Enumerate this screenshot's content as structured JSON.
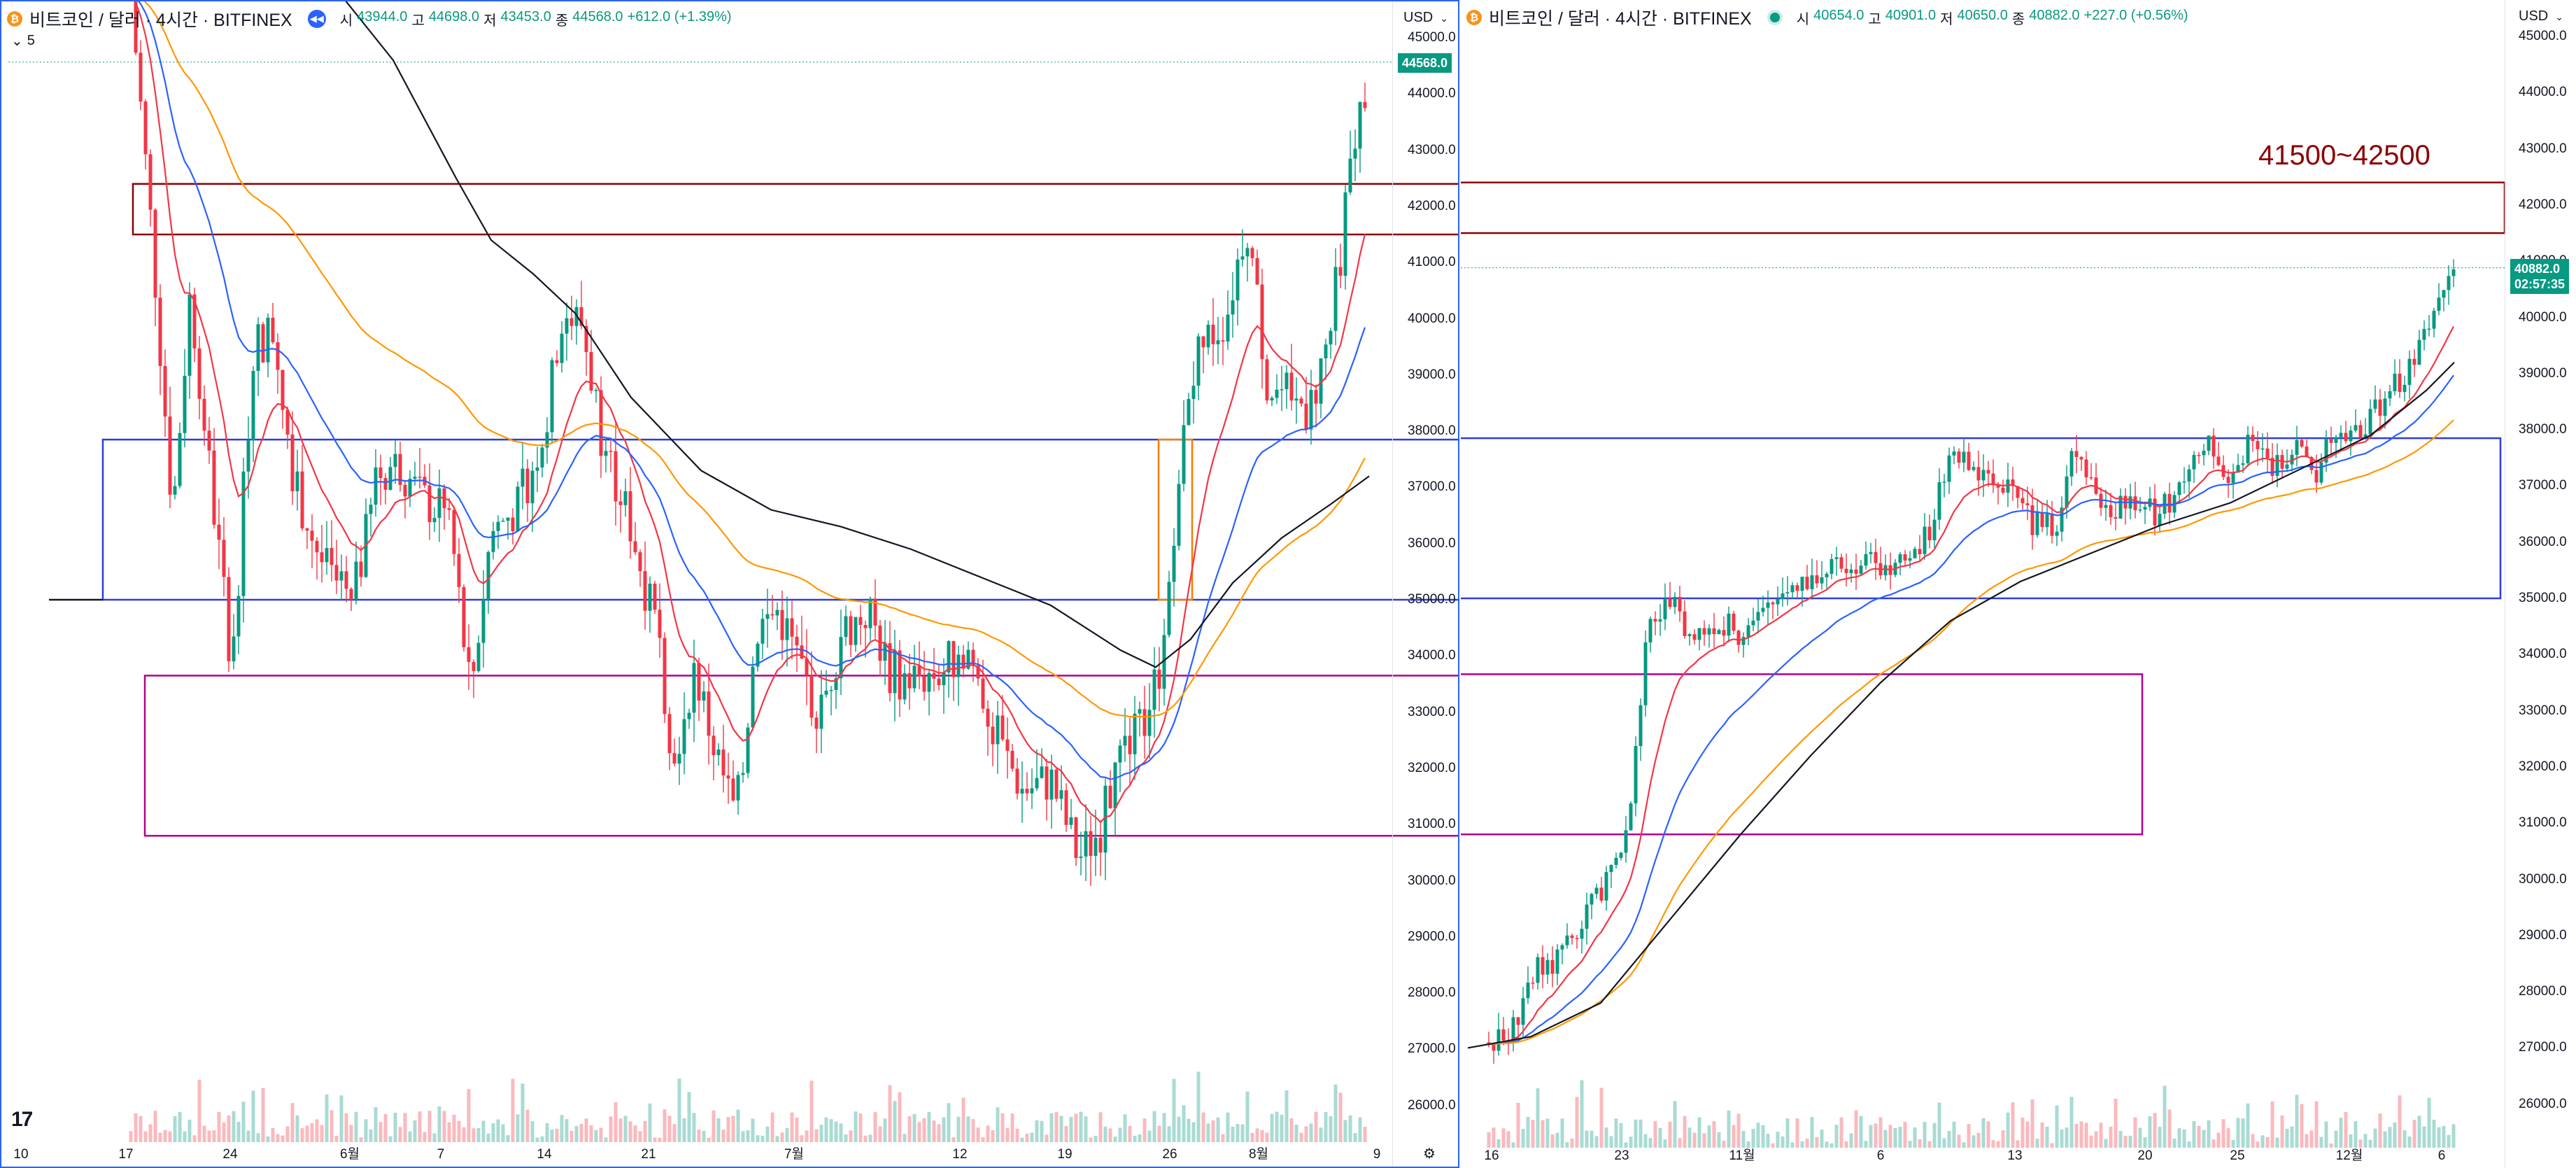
{
  "left": {
    "symbol": "비트코인 / 달러 · 4시간 · BITFINEX",
    "ohlc": [
      {
        "k": "시",
        "v": "43944.0"
      },
      {
        "k": "고",
        "v": "44698.0"
      },
      {
        "k": "저",
        "v": "43453.0"
      },
      {
        "k": "종",
        "v": "44568.0"
      }
    ],
    "change": "+612.0 (+1.39%)",
    "indicator_count": "5",
    "currency": "USD",
    "last_price": "44568.0",
    "price_ticks": [
      "45000.0",
      "44000.0",
      "43000.0",
      "42000.0",
      "41000.0",
      "40000.0",
      "39000.0",
      "38000.0",
      "37000.0",
      "36000.0",
      "35000.0",
      "34000.0",
      "33000.0",
      "32000.0",
      "31000.0",
      "30000.0",
      "29000.0",
      "28000.0",
      "27000.0",
      "26000.0"
    ],
    "time_ticks": [
      "10",
      "17",
      "24",
      "6월",
      "7",
      "14",
      "21",
      "7월",
      "12",
      "19",
      "26",
      "8월",
      "9"
    ],
    "colors": {
      "up": "#089981",
      "down": "#f23645",
      "ema_fast": "#f23645",
      "ema_mid": "#2962ff",
      "ema_slow": "#ff9800",
      "ma_long": "#131722",
      "box_red": "#8b0000",
      "box_blue": "#2e3ddb",
      "box_magenta": "#b3008a",
      "box_orange": "#f57c00"
    }
  },
  "right": {
    "symbol": "비트코인 / 달러 · 4시간 · BITFINEX",
    "ohlc": [
      {
        "k": "시",
        "v": "40654.0"
      },
      {
        "k": "고",
        "v": "40901.0"
      },
      {
        "k": "저",
        "v": "40650.0"
      },
      {
        "k": "종",
        "v": "40882.0"
      }
    ],
    "change": "+227.0 (+0.56%)",
    "currency": "USD",
    "last_price": "40882.0",
    "countdown": "02:57:35",
    "annotation": "41500~42500",
    "price_ticks": [
      "45000.0",
      "44000.0",
      "43000.0",
      "42000.0",
      "41000.0",
      "40000.0",
      "39000.0",
      "38000.0",
      "37000.0",
      "36000.0",
      "35000.0",
      "34000.0",
      "33000.0",
      "32000.0",
      "31000.0",
      "30000.0",
      "29000.0",
      "28000.0",
      "27000.0",
      "26000.0"
    ],
    "time_ticks": [
      "16",
      "23",
      "11월",
      "6",
      "13",
      "20",
      "25",
      "12월",
      "6"
    ]
  },
  "icons": {
    "symbol": "bitcoin-icon",
    "rewind": "rewind-icon",
    "live": "live-dot-icon",
    "collapse": "chevron-down-icon",
    "settings": "gear-icon",
    "logo": "tradingview-logo"
  }
}
